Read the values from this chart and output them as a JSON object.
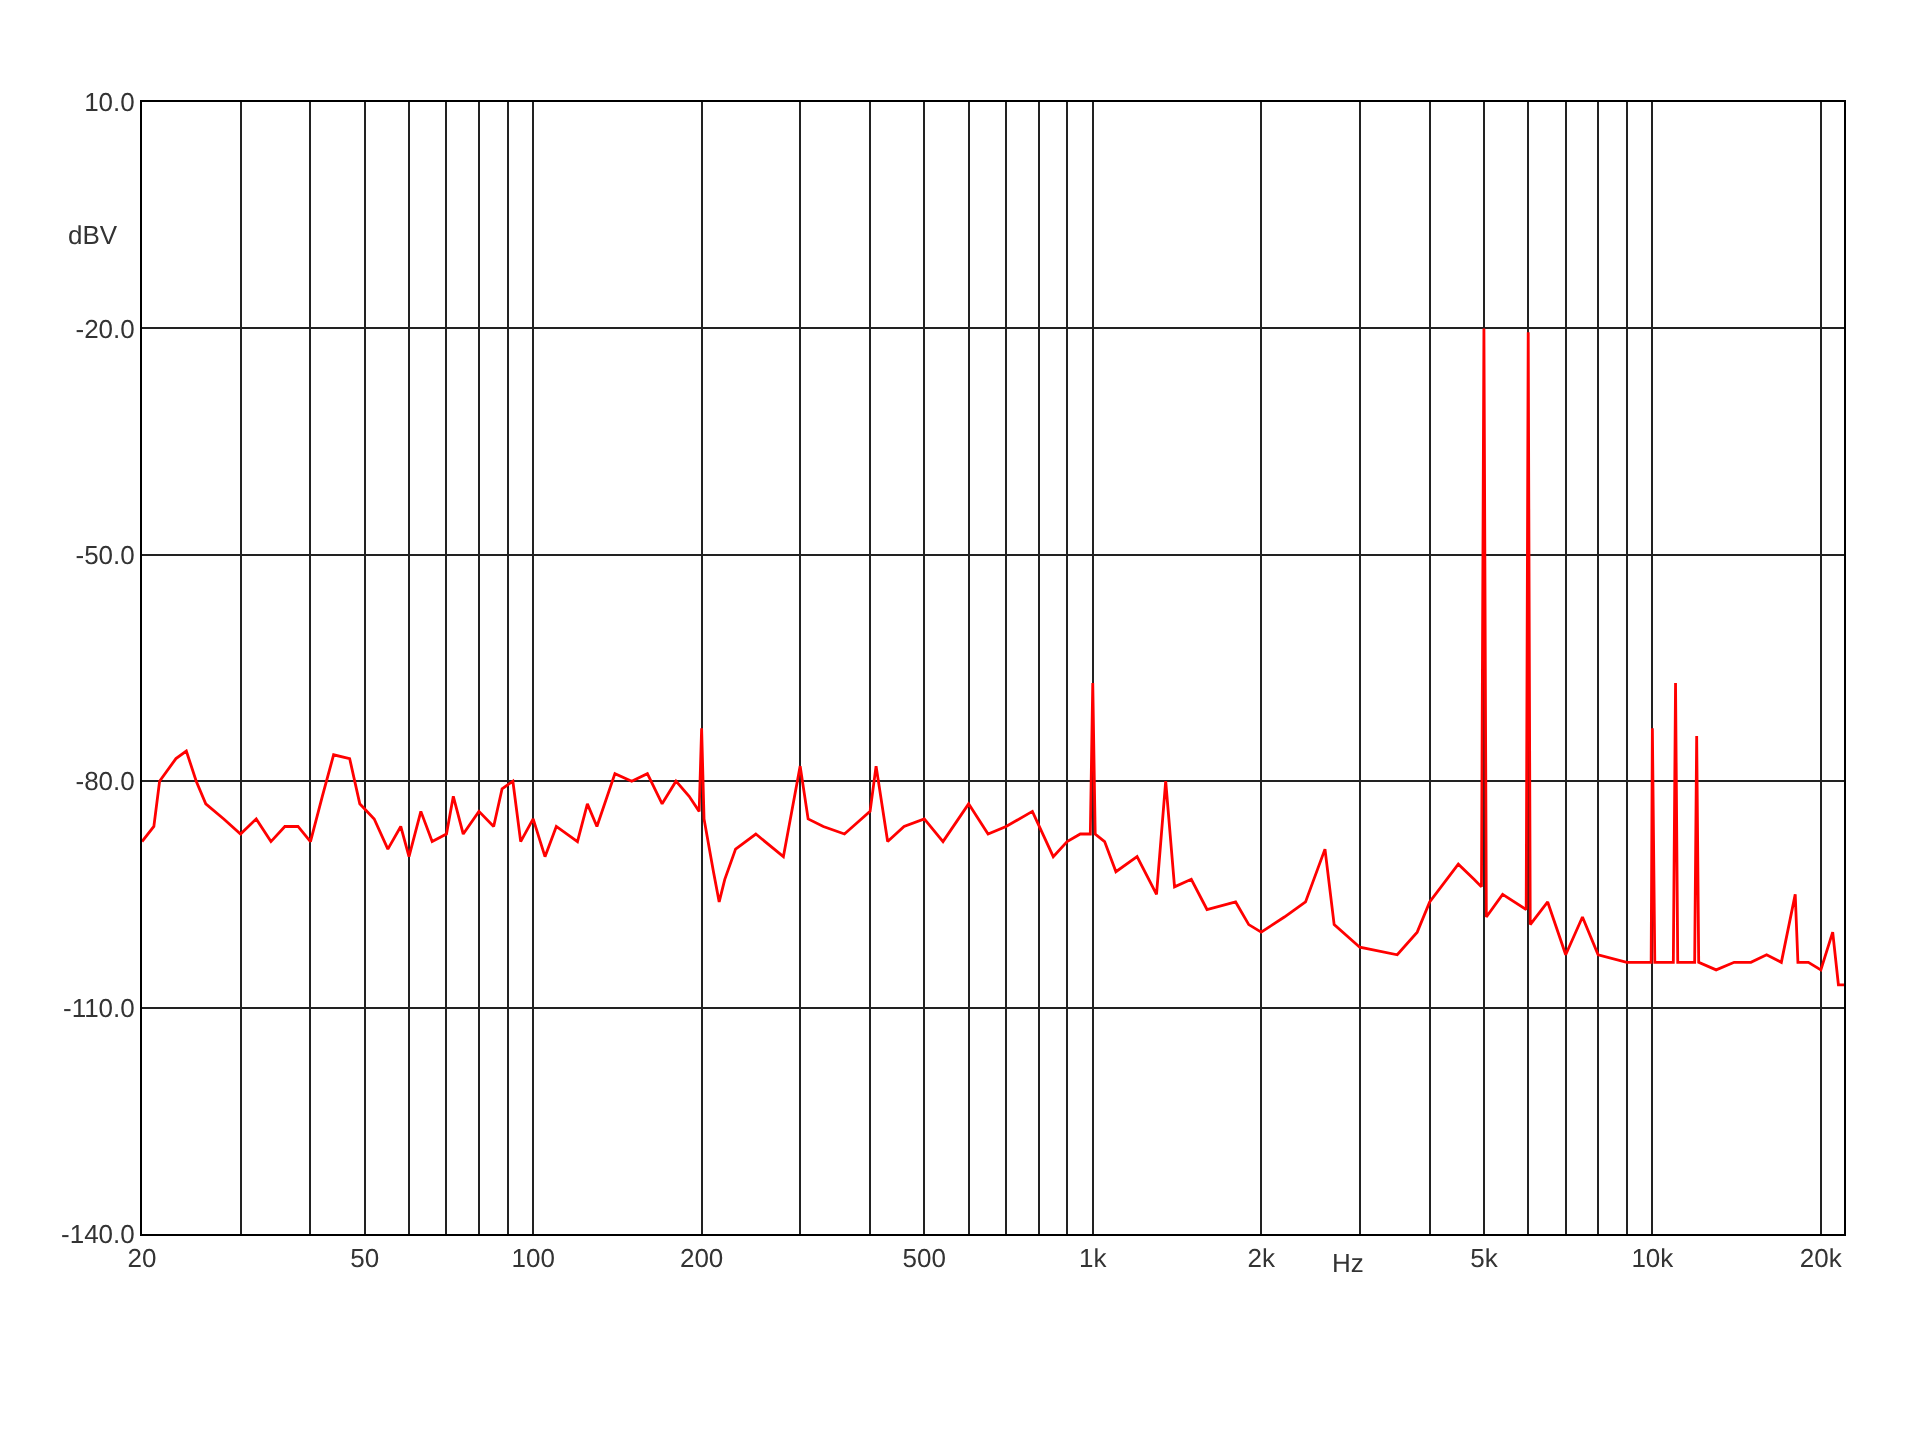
{
  "chart_data": {
    "type": "line",
    "xlabel": "Hz",
    "ylabel": "dBV",
    "log": "x",
    "grid": true,
    "marker": "none",
    "line_style": "solid",
    "xlim": [
      20,
      22000
    ],
    "xticks": [
      20,
      {
        "value": 30,
        "label": null
      },
      {
        "value": 40,
        "label": null
      },
      50,
      {
        "value": 60,
        "label": null
      },
      {
        "value": 70,
        "label": null
      },
      {
        "value": 80,
        "label": null
      },
      {
        "value": 90,
        "label": null
      },
      100,
      200,
      {
        "value": 300,
        "label": null
      },
      {
        "value": 400,
        "label": null
      },
      500,
      {
        "value": 600,
        "label": null
      },
      {
        "value": 700,
        "label": null
      },
      {
        "value": 800,
        "label": null
      },
      {
        "value": 900,
        "label": null
      },
      {
        "value": 1000,
        "label": "1k"
      },
      {
        "value": 2000,
        "label": "2k"
      },
      {
        "value": 3000,
        "label": null
      },
      {
        "value": 4000,
        "label": null
      },
      {
        "value": 5000,
        "label": "5k"
      },
      {
        "value": 6000,
        "label": null
      },
      {
        "value": 7000,
        "label": null
      },
      {
        "value": 8000,
        "label": null
      },
      {
        "value": 9000,
        "label": null
      },
      {
        "value": 10000,
        "label": "10k"
      },
      {
        "value": 20000,
        "label": "20k"
      }
    ],
    "ylim": [
      -140,
      10
    ],
    "yticks": [
      {
        "value": -140,
        "label": "-140.0"
      },
      {
        "value": -110,
        "label": "-110.0"
      },
      {
        "value": -80,
        "label": "-80.0"
      },
      {
        "value": -50,
        "label": "-50.0"
      },
      {
        "value": -20,
        "label": "-20.0"
      },
      {
        "value": 10,
        "label": "10.0"
      }
    ],
    "series": [
      {
        "color": "#ff0000",
        "x": [
          20,
          21,
          21.5,
          23,
          24,
          25,
          26,
          28,
          30,
          32,
          34,
          36,
          38,
          40,
          42,
          44,
          47,
          49,
          52,
          55,
          58,
          60,
          63,
          66,
          70,
          72,
          75,
          80,
          85,
          88,
          92,
          95,
          100,
          105,
          110,
          120,
          125,
          130,
          140,
          150,
          160,
          170,
          180,
          190,
          198,
          200,
          202,
          210,
          215,
          220,
          230,
          250,
          280,
          300,
          310,
          330,
          360,
          400,
          410,
          430,
          460,
          500,
          540,
          600,
          650,
          700,
          780,
          850,
          900,
          950,
          990,
          1000,
          1010,
          1050,
          1100,
          1200,
          1300,
          1350,
          1400,
          1500,
          1600,
          1800,
          1900,
          2000,
          2200,
          2400,
          2600,
          2700,
          3000,
          3500,
          3800,
          4000,
          4500,
          4800,
          4950,
          5000,
          5050,
          5400,
          5950,
          6000,
          6050,
          6500,
          7000,
          7500,
          8000,
          9000,
          9950,
          10000,
          10100,
          10900,
          11000,
          11100,
          11900,
          12000,
          12100,
          13000,
          14000,
          15000,
          16000,
          17000,
          18000,
          18200,
          19000,
          20000,
          21000,
          21500,
          22000
        ],
        "values": [
          -88,
          -86,
          -80,
          -77,
          -76,
          -80,
          -83,
          -85,
          -87,
          -85,
          -88,
          -86,
          -86,
          -88,
          -82,
          -76.5,
          -77,
          -83,
          -85,
          -89,
          -86,
          -90,
          -84,
          -88,
          -87,
          -82,
          -87,
          -84,
          -86,
          -81,
          -80,
          -88,
          -85,
          -90,
          -86,
          -88,
          -83,
          -86,
          -79,
          -80,
          -79,
          -83,
          -80,
          -82,
          -84,
          -73,
          -85,
          -92,
          -96,
          -93,
          -89,
          -87,
          -90,
          -78,
          -85,
          -86,
          -87,
          -84,
          -78,
          -88,
          -86,
          -85,
          -88,
          -83,
          -87,
          -86,
          -84,
          -90,
          -88,
          -87,
          -87,
          -67,
          -87,
          -88,
          -92,
          -90,
          -95,
          -80,
          -94,
          -93,
          -97,
          -96,
          -99,
          -100,
          -98,
          -96,
          -89,
          -99,
          -102,
          -103,
          -100,
          -96,
          -91,
          -93,
          -94,
          -20,
          -98,
          -95,
          -97,
          -20.5,
          -99,
          -96,
          -103,
          -98,
          -103,
          -104,
          -104,
          -73,
          -104,
          -104,
          -67,
          -104,
          -104,
          -74,
          -104,
          -105,
          -104,
          -104,
          -103,
          -104,
          -95,
          -104,
          -104,
          -105,
          -100,
          -107,
          -107
        ]
      }
    ]
  }
}
